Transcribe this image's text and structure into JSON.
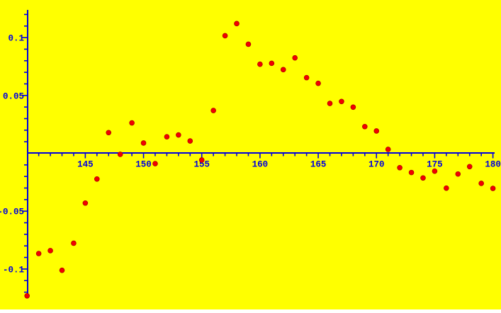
{
  "chart_data": {
    "type": "scatter",
    "title": "",
    "xlabel": "",
    "ylabel": "",
    "x": [
      140,
      141,
      142,
      143,
      144,
      145,
      146,
      147,
      148,
      149,
      150,
      151,
      152,
      153,
      154,
      155,
      156,
      157,
      158,
      159,
      160,
      161,
      162,
      163,
      164,
      165,
      166,
      167,
      168,
      169,
      170,
      171,
      172,
      173,
      174,
      175,
      176,
      177,
      178,
      179,
      180
    ],
    "y": [
      -0.1232,
      -0.0866,
      -0.0841,
      -0.1011,
      -0.0777,
      -0.043,
      -0.0222,
      0.0179,
      -0.0009,
      0.0263,
      0.0089,
      -0.0089,
      0.0143,
      0.0159,
      0.0107,
      -0.0058,
      0.037,
      0.1016,
      0.1121,
      0.0943,
      0.077,
      0.0778,
      0.0723,
      0.0825,
      0.0654,
      0.0605,
      0.0431,
      0.0448,
      0.0399,
      0.0231,
      0.0193,
      0.0034,
      -0.0124,
      -0.0166,
      -0.0213,
      -0.0154,
      -0.0301,
      -0.0179,
      -0.0115,
      -0.026,
      -0.0303
    ],
    "xlim": [
      140,
      180
    ],
    "ylim": [
      -0.126,
      0.124
    ],
    "axes_cross_at": [
      140,
      0
    ],
    "x_major_ticks": [
      145,
      150,
      155,
      160,
      165,
      170,
      175,
      180
    ],
    "x_major_tick_labels": [
      "145",
      "150",
      "155",
      "160",
      "165",
      "170",
      "175",
      "180"
    ],
    "x_minor_tick_step": 1,
    "y_major_ticks": [
      0.1,
      0.05,
      -0.05,
      -0.1
    ],
    "y_major_tick_labels": [
      "0.1",
      "0.05",
      "-0.05",
      "-0.1"
    ],
    "y_minor_tick_step": 0.01,
    "grid": false,
    "legend": false,
    "background": "#FFFF00",
    "axis_color": "#0000DD",
    "label_color": "#0000DD",
    "point_fill": "#F20000",
    "point_stroke": "#B00000"
  }
}
